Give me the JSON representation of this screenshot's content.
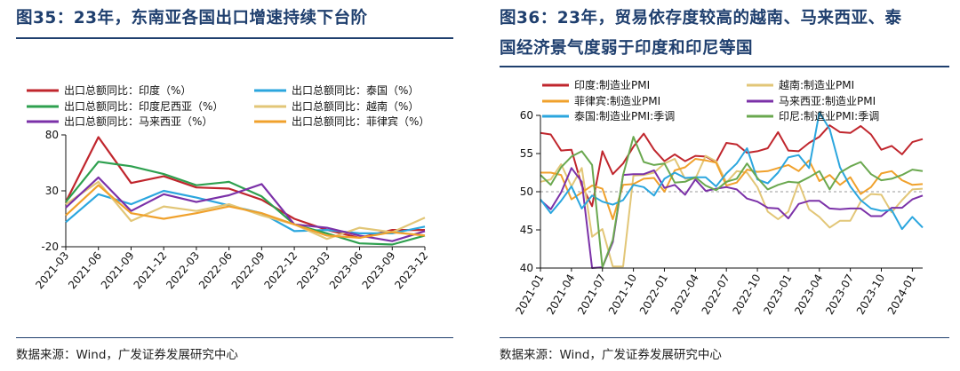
{
  "charts": [
    {
      "heading": "图35：23年，东南亚各国出口增速持续下台阶",
      "source": "数据来源：Wind，广发证券发展研究中心"
    },
    {
      "heading_line1": "图36：23年，贸易依存度较高的越南、马来西亚、泰",
      "heading_line2": "国经济景气度弱于印度和印尼等国",
      "source": "数据来源：Wind，广发证券发展研究中心"
    }
  ],
  "chart_data": [
    {
      "type": "line",
      "title": "",
      "xlabel": "",
      "ylabel": "",
      "x": [
        "2021-03",
        "2021-06",
        "2021-09",
        "2021-12",
        "2022-03",
        "2022-06",
        "2022-09",
        "2022-12",
        "2023-03",
        "2023-06",
        "2023-09",
        "2023-12"
      ],
      "x_ticks": [
        "2021-03",
        "2021-06",
        "2021-09",
        "2021-12",
        "2022-03",
        "2022-06",
        "2022-09",
        "2022-12",
        "2023-03",
        "2023-06",
        "2023-09",
        "2023-12"
      ],
      "ylim": [
        -20,
        80
      ],
      "y_ticks": [
        80,
        30,
        -20
      ],
      "grid": false,
      "legend_position": "top",
      "series": [
        {
          "name": "出口总额同比：印度（%）",
          "color": "#c0262d",
          "values": [
            20,
            78,
            37,
            43,
            33,
            32,
            22,
            5,
            -5,
            -12,
            -5,
            -5
          ]
        },
        {
          "name": "出口总额同比：泰国（%）",
          "color": "#2ba6de",
          "values": [
            2,
            27,
            18,
            30,
            24,
            17,
            10,
            -6,
            -5,
            -8,
            -8,
            -2
          ]
        },
        {
          "name": "出口总额同比：印度尼西亚（%）",
          "color": "#2ea04f",
          "values": [
            20,
            56,
            52,
            45,
            35,
            38,
            25,
            0,
            -8,
            -17,
            -18,
            -10
          ]
        },
        {
          "name": "出口总额同比：越南（%）",
          "color": "#e2c677",
          "values": [
            18,
            38,
            3,
            16,
            12,
            18,
            8,
            0,
            -13,
            -3,
            -7,
            6
          ]
        },
        {
          "name": "出口总额同比：马来西亚（%）",
          "color": "#7b31a8",
          "values": [
            15,
            42,
            12,
            27,
            20,
            26,
            36,
            0,
            -3,
            -10,
            -15,
            -6
          ]
        },
        {
          "name": "出口总额同比：菲律宾（%）",
          "color": "#f0a12c",
          "values": [
            8,
            35,
            10,
            5,
            10,
            16,
            10,
            0,
            -10,
            -12,
            -7,
            -10
          ]
        }
      ]
    },
    {
      "type": "line",
      "title": "",
      "xlabel": "",
      "ylabel": "",
      "x_ticks": [
        "2021-01",
        "2021-04",
        "2021-07",
        "2021-10",
        "2022-01",
        "2022-04",
        "2022-07",
        "2022-10",
        "2023-01",
        "2023-04",
        "2023-07",
        "2023-10",
        "2024-01"
      ],
      "x_start": "2021-01",
      "ylim": [
        40,
        60
      ],
      "y_ticks": [
        60,
        55,
        50,
        45,
        40
      ],
      "reference_line": 50,
      "grid": false,
      "legend_position": "top",
      "series": [
        {
          "name": "印度:制造业PMI",
          "color": "#c0262d",
          "values": [
            57.7,
            57.5,
            55.4,
            55.5,
            50.8,
            48.1,
            55.3,
            52.3,
            53.7,
            55.9,
            57.6,
            55.5,
            54.0,
            54.9,
            54.0,
            54.7,
            54.6,
            53.9,
            56.4,
            56.2,
            55.1,
            55.3,
            55.7,
            57.8,
            55.4,
            55.3,
            56.4,
            57.2,
            58.7,
            57.8,
            57.7,
            58.6,
            57.5,
            55.5,
            56.0,
            54.9,
            56.5,
            56.9
          ]
        },
        {
          "name": "越南:制造业PMI",
          "color": "#e2c677",
          "values": [
            51.3,
            51.6,
            53.6,
            50.7,
            53.1,
            44.1,
            45.1,
            40.2,
            40.2,
            52.1,
            52.2,
            52.5,
            53.7,
            54.3,
            51.7,
            51.7,
            54.7,
            54.0,
            51.2,
            52.7,
            52.5,
            50.6,
            47.4,
            46.4,
            47.4,
            51.2,
            47.7,
            46.7,
            45.3,
            46.2,
            46.2,
            48.7,
            49.7,
            49.6,
            47.3,
            48.9,
            50.3,
            50.4
          ]
        },
        {
          "name": "菲律宾:制造业PMI",
          "color": "#f0a12c",
          "values": [
            52.5,
            52.5,
            52.2,
            49.0,
            49.9,
            50.8,
            50.4,
            46.4,
            50.9,
            51.0,
            51.7,
            51.8,
            50.0,
            52.8,
            53.2,
            54.3,
            54.1,
            53.8,
            50.8,
            51.2,
            52.9,
            52.6,
            52.7,
            53.1,
            53.5,
            52.7,
            54.1,
            51.4,
            52.2,
            50.9,
            51.9,
            49.7,
            50.6,
            52.4,
            52.7,
            51.5,
            50.9,
            51.0
          ]
        },
        {
          "name": "马来西亚:制造业PMI",
          "color": "#7b31a8",
          "values": [
            48.9,
            47.7,
            49.9,
            53.1,
            51.3,
            39.9,
            40.1,
            43.4,
            52.2,
            52.3,
            52.3,
            52.8,
            50.5,
            50.9,
            49.6,
            51.6,
            50.1,
            50.4,
            50.6,
            50.3,
            49.1,
            48.7,
            47.9,
            47.8,
            46.5,
            48.4,
            48.8,
            48.8,
            47.8,
            47.7,
            47.8,
            47.8,
            46.8,
            46.8,
            47.9,
            47.9,
            49.0,
            49.5
          ]
        },
        {
          "name": "泰国:制造业PMI:季调",
          "color": "#2ba6de",
          "values": [
            49.0,
            47.2,
            48.8,
            50.7,
            47.8,
            49.5,
            48.7,
            48.3,
            48.9,
            50.9,
            50.6,
            49.5,
            51.7,
            52.5,
            51.8,
            51.9,
            51.9,
            50.7,
            52.4,
            53.7,
            55.7,
            51.6,
            51.1,
            52.5,
            54.5,
            54.8,
            53.1,
            60.4,
            58.2,
            53.2,
            50.7,
            48.9,
            47.8,
            47.5,
            47.6,
            45.1,
            46.7,
            45.3
          ]
        },
        {
          "name": "印尼:制造业PMI:季调",
          "color": "#6aa84f",
          "values": [
            52.2,
            50.9,
            53.2,
            54.6,
            55.3,
            53.5,
            40.1,
            43.7,
            52.2,
            57.2,
            53.9,
            53.5,
            53.7,
            51.2,
            51.3,
            51.9,
            50.8,
            50.2,
            51.3,
            51.7,
            53.7,
            51.8,
            50.3,
            50.9,
            51.3,
            51.2,
            51.9,
            52.7,
            50.3,
            52.5,
            53.3,
            53.9,
            52.3,
            51.5,
            51.7,
            52.2,
            52.9,
            52.7
          ]
        }
      ]
    }
  ]
}
